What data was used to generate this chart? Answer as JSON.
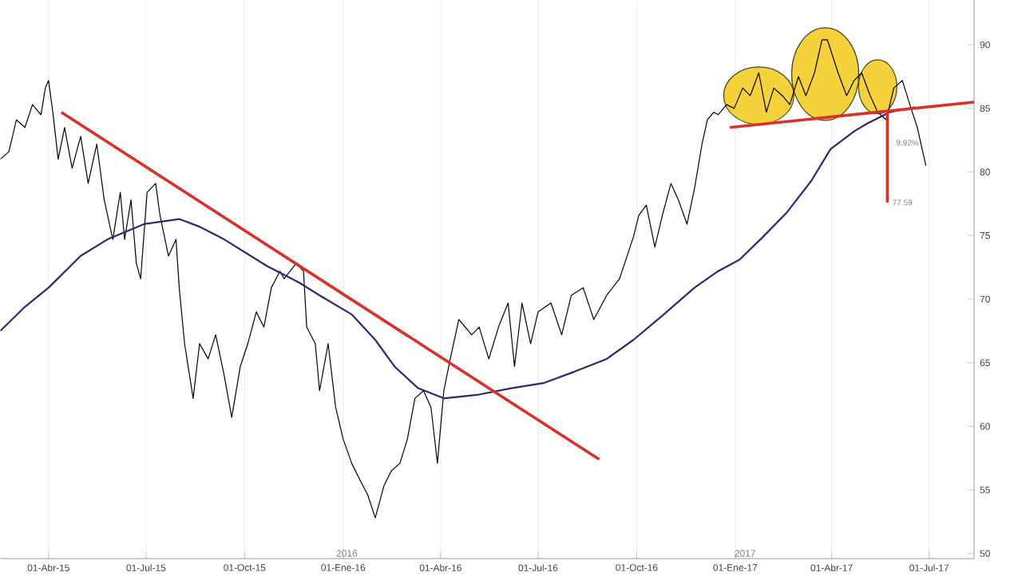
{
  "chart_data": {
    "type": "line",
    "xlim": [
      "2015-02-15",
      "2017-08-12"
    ],
    "ylim": [
      49.6,
      93.5
    ],
    "yticks": [
      50,
      55,
      60,
      65,
      70,
      75,
      80,
      85,
      90
    ],
    "xticks": [
      {
        "value": "2015-04-01",
        "label": "01-Abr-15"
      },
      {
        "value": "2015-07-01",
        "label": "01-Jul-15"
      },
      {
        "value": "2015-10-01",
        "label": "01-Oct-15"
      },
      {
        "value": "2016-01-01",
        "label": "01-Ene-16"
      },
      {
        "value": "2016-04-01",
        "label": "01-Abr-16"
      },
      {
        "value": "2016-07-01",
        "label": "01-Jul-16"
      },
      {
        "value": "2016-10-01",
        "label": "01-Oct-16"
      },
      {
        "value": "2017-01-01",
        "label": "01-Ene-17"
      },
      {
        "value": "2017-04-01",
        "label": "01-Abr-17"
      },
      {
        "value": "2017-07-01",
        "label": "01-Jul-17"
      }
    ],
    "grid": "x",
    "series": [
      {
        "color": "#000000",
        "x": [
          "2015-02-15",
          "2015-02-23",
          "2015-03-02",
          "2015-03-10",
          "2015-03-17",
          "2015-03-25",
          "2015-03-29",
          "2015-04-01",
          "2015-04-05",
          "2015-04-10",
          "2015-04-16",
          "2015-04-23",
          "2015-05-01",
          "2015-05-08",
          "2015-05-16",
          "2015-05-23",
          "2015-05-31",
          "2015-06-07",
          "2015-06-11",
          "2015-06-17",
          "2015-06-22",
          "2015-06-26",
          "2015-07-02",
          "2015-07-10",
          "2015-07-14",
          "2015-07-22",
          "2015-07-29",
          "2015-08-01",
          "2015-08-06",
          "2015-08-14",
          "2015-08-20",
          "2015-08-28",
          "2015-09-04",
          "2015-09-12",
          "2015-09-19",
          "2015-09-27",
          "2015-10-04",
          "2015-10-12",
          "2015-10-19",
          "2015-10-26",
          "2015-11-03",
          "2015-11-07",
          "2015-11-18",
          "2015-11-25",
          "2015-11-28",
          "2015-12-06",
          "2015-12-10",
          "2015-12-18",
          "2015-12-25",
          "2016-01-01",
          "2016-01-09",
          "2016-01-16",
          "2016-01-24",
          "2016-01-31",
          "2016-02-08",
          "2016-02-15",
          "2016-02-23",
          "2016-03-01",
          "2016-03-08",
          "2016-03-16",
          "2016-03-23",
          "2016-03-29",
          "2016-04-04",
          "2016-04-10",
          "2016-04-18",
          "2016-04-30",
          "2016-05-07",
          "2016-05-16",
          "2016-05-25",
          "2016-06-03",
          "2016-06-09",
          "2016-06-16",
          "2016-06-24",
          "2016-07-01",
          "2016-07-13",
          "2016-07-23",
          "2016-08-01",
          "2016-08-12",
          "2016-08-22",
          "2016-09-03",
          "2016-09-15",
          "2016-09-28",
          "2016-10-03",
          "2016-10-10",
          "2016-10-18",
          "2016-10-25",
          "2016-11-02",
          "2016-11-09",
          "2016-11-17",
          "2016-11-24",
          "2016-12-01",
          "2016-12-06",
          "2016-12-12",
          "2016-12-16",
          "2016-12-24",
          "2016-12-31",
          "2017-01-08",
          "2017-01-15",
          "2017-01-23",
          "2017-01-30",
          "2017-02-06",
          "2017-02-14",
          "2017-02-21",
          "2017-03-01",
          "2017-03-08",
          "2017-03-16",
          "2017-03-23",
          "2017-03-28",
          "2017-04-07",
          "2017-04-15",
          "2017-04-22",
          "2017-04-29",
          "2017-05-07",
          "2017-05-14",
          "2017-05-22",
          "2017-05-29",
          "2017-06-06",
          "2017-06-13",
          "2017-06-20",
          "2017-06-25",
          "2017-06-28"
        ],
        "values": [
          81.0,
          81.6,
          84.1,
          83.5,
          85.3,
          84.5,
          86.6,
          87.2,
          84.7,
          81.0,
          83.5,
          80.3,
          82.8,
          79.1,
          82.2,
          77.8,
          74.7,
          78.4,
          74.7,
          77.8,
          72.8,
          71.6,
          78.4,
          79.1,
          76.6,
          73.4,
          74.7,
          70.9,
          66.5,
          62.2,
          66.5,
          65.3,
          67.2,
          64.0,
          60.7,
          64.7,
          66.5,
          69.0,
          67.8,
          70.9,
          72.2,
          71.6,
          72.8,
          72.2,
          67.8,
          66.5,
          62.8,
          66.5,
          61.5,
          59.0,
          57.1,
          55.9,
          54.6,
          52.8,
          55.3,
          56.5,
          57.1,
          59.0,
          62.2,
          62.8,
          61.5,
          57.1,
          62.8,
          65.3,
          68.4,
          67.2,
          67.8,
          65.3,
          67.8,
          69.7,
          64.7,
          69.7,
          66.5,
          69.0,
          69.7,
          67.2,
          70.3,
          70.9,
          68.4,
          70.3,
          71.6,
          74.9,
          76.6,
          77.4,
          74.1,
          76.6,
          79.1,
          77.8,
          75.9,
          78.7,
          82.2,
          84.1,
          84.7,
          84.5,
          85.3,
          85.0,
          86.6,
          86.0,
          87.8,
          84.7,
          86.6,
          86.0,
          85.3,
          87.5,
          86.0,
          87.8,
          90.4,
          90.4,
          87.8,
          86.0,
          87.2,
          87.8,
          86.0,
          84.7,
          84.1,
          86.6,
          87.2,
          85.3,
          83.5,
          81.6,
          80.5
        ]
      },
      {
        "color": "#2b2a6e",
        "x": [
          "2015-02-15",
          "2015-03-10",
          "2015-04-01",
          "2015-05-01",
          "2015-05-26",
          "2015-06-29",
          "2015-08-01",
          "2015-08-20",
          "2015-09-12",
          "2015-10-22",
          "2015-11-21",
          "2015-12-10",
          "2016-01-09",
          "2016-01-31",
          "2016-02-18",
          "2016-03-11",
          "2016-04-04",
          "2016-05-07",
          "2016-06-06",
          "2016-07-06",
          "2016-08-04",
          "2016-09-03",
          "2016-09-28",
          "2016-10-25",
          "2016-11-24",
          "2016-12-16",
          "2017-01-05",
          "2017-01-27",
          "2017-02-18",
          "2017-03-13",
          "2017-03-31",
          "2017-04-22",
          "2017-05-04",
          "2017-05-25",
          "2017-06-18"
        ],
        "values": [
          67.5,
          69.4,
          70.9,
          73.4,
          74.7,
          75.9,
          76.3,
          75.7,
          74.7,
          72.6,
          71.3,
          70.3,
          68.8,
          66.8,
          64.7,
          63.0,
          62.2,
          62.5,
          63.0,
          63.4,
          64.3,
          65.3,
          66.8,
          68.7,
          70.9,
          72.2,
          73.1,
          74.9,
          76.8,
          79.3,
          81.8,
          83.2,
          83.8,
          84.7,
          85.1
        ]
      },
      {
        "color": "#d9302a",
        "x": [
          "2015-04-13",
          "2016-08-27"
        ],
        "values": [
          84.7,
          57.4
        ]
      },
      {
        "color": "#d9302a",
        "x": [
          "2016-12-27",
          "2017-08-12"
        ],
        "values": [
          83.5,
          85.5
        ]
      },
      {
        "color": "#d9302a",
        "x": [
          "2017-05-23",
          "2017-05-23"
        ],
        "values": [
          84.7,
          77.6
        ]
      }
    ],
    "annotations": [
      "2016",
      "2017",
      "9.92%",
      {
        "text": "77.59",
        "x": "2017-05-23",
        "y": 77.6
      }
    ]
  }
}
